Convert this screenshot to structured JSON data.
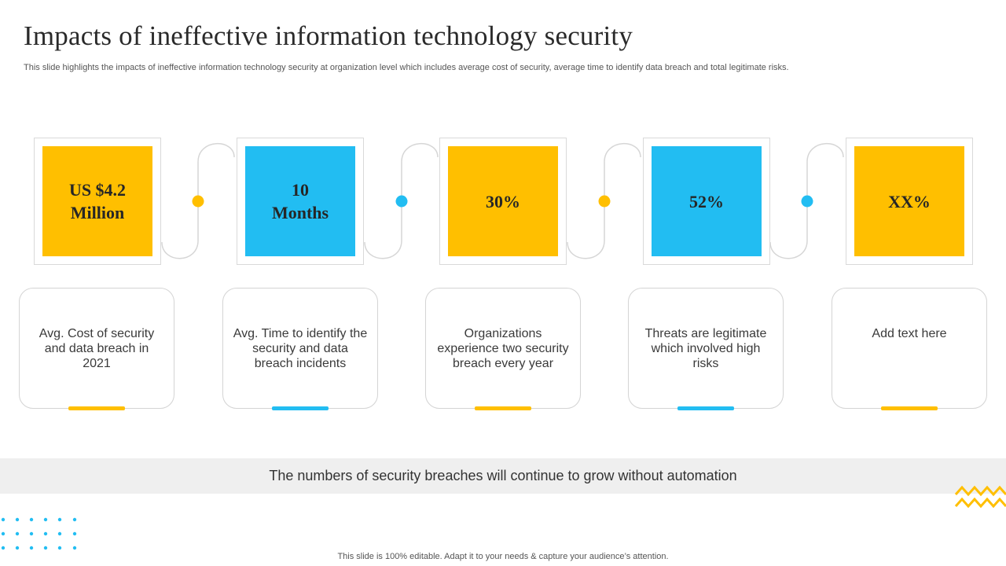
{
  "slide": {
    "title": "Impacts of ineffective information technology security",
    "subtitle": "This slide highlights the impacts of ineffective information technology security at organization level which includes average cost of security, average time to identify data breach and total legitimate risks."
  },
  "colors": {
    "yellow": "#FFBF00",
    "blue": "#22BDF2",
    "frame_border": "#D9D9D9",
    "banner_bg": "#EFEFEF"
  },
  "stats": [
    {
      "value": "US $4.2\nMillion",
      "color": "#FFBF00"
    },
    {
      "value": "10\nMonths",
      "color": "#22BDF2"
    },
    {
      "value": "30%",
      "color": "#FFBF00"
    },
    {
      "value": "52%",
      "color": "#22BDF2"
    },
    {
      "value": "XX%",
      "color": "#FFBF00"
    }
  ],
  "descriptions": [
    "Avg. Cost of security and data breach in 2021",
    "Avg. Time to identify the security and data breach incidents",
    "Organizations experience two security breach every year",
    "Threats are legitimate which involved high risks",
    "Add text here"
  ],
  "banner": {
    "text": "The numbers of security breaches will continue to grow without automation"
  },
  "footer": {
    "text": "This slide is 100% editable. Adapt it to your needs & capture your audience’s attention."
  }
}
